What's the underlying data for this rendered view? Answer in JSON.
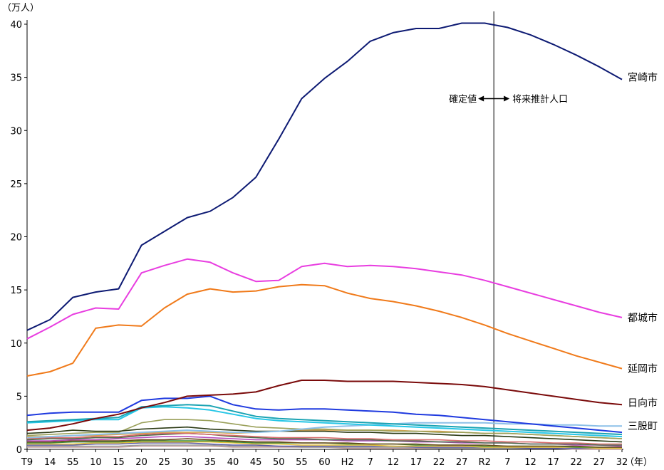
{
  "chart_data": {
    "type": "line",
    "title": "",
    "ylabel": "（万人）",
    "xlabel": "（年）",
    "ylim": [
      0,
      40
    ],
    "yticks": [
      0,
      5,
      10,
      15,
      20,
      25,
      30,
      35,
      40
    ],
    "categories": [
      "T9",
      "14",
      "S5",
      "10",
      "15",
      "20",
      "25",
      "30",
      "35",
      "40",
      "45",
      "50",
      "55",
      "60",
      "H2",
      "7",
      "12",
      "17",
      "22",
      "27",
      "R2",
      "7",
      "12",
      "17",
      "22",
      "27",
      "32"
    ],
    "divider_after_index": 20,
    "annotation_left": "確定値",
    "annotation_right": "将来推計人口",
    "series": [
      {
        "name": "宮崎市",
        "color": "#0d1a73",
        "width": 2,
        "label": true,
        "values": [
          11.2,
          12.2,
          14.3,
          14.8,
          15.1,
          19.2,
          20.5,
          21.8,
          22.4,
          23.7,
          25.6,
          29.2,
          33.0,
          34.9,
          36.5,
          38.4,
          39.2,
          39.6,
          39.6,
          40.1,
          40.1,
          39.7,
          39.0,
          38.1,
          37.1,
          36.0,
          34.8
        ]
      },
      {
        "name": "都城市",
        "color": "#e83de0",
        "width": 2,
        "label": true,
        "values": [
          10.4,
          11.5,
          12.7,
          13.3,
          13.2,
          16.6,
          17.3,
          17.9,
          17.6,
          16.6,
          15.8,
          15.9,
          17.2,
          17.5,
          17.2,
          17.3,
          17.2,
          17.0,
          16.7,
          16.4,
          15.9,
          15.3,
          14.7,
          14.1,
          13.5,
          12.9,
          12.4
        ]
      },
      {
        "name": "延岡市",
        "color": "#f07a1a",
        "width": 2,
        "label": true,
        "values": [
          6.9,
          7.3,
          8.1,
          11.4,
          11.7,
          11.6,
          13.3,
          14.6,
          15.1,
          14.8,
          14.9,
          15.3,
          15.5,
          15.4,
          14.7,
          14.2,
          13.9,
          13.5,
          13.0,
          12.4,
          11.7,
          10.9,
          10.2,
          9.5,
          8.8,
          8.2,
          7.6
        ]
      },
      {
        "name": "日向市",
        "color": "#7a0a0a",
        "width": 2,
        "label": true,
        "values": [
          1.8,
          2.0,
          2.4,
          2.9,
          3.3,
          3.9,
          4.4,
          5.0,
          5.1,
          5.2,
          5.4,
          6.0,
          6.5,
          6.5,
          6.4,
          6.4,
          6.4,
          6.3,
          6.2,
          6.1,
          5.9,
          5.6,
          5.3,
          5.0,
          4.7,
          4.4,
          4.2
        ]
      },
      {
        "name": "",
        "color": "#1f3adf",
        "width": 2,
        "label": false,
        "values": [
          3.2,
          3.4,
          3.5,
          3.5,
          3.5,
          4.6,
          4.8,
          4.8,
          5.0,
          4.2,
          3.8,
          3.7,
          3.8,
          3.8,
          3.7,
          3.6,
          3.5,
          3.3,
          3.2,
          3.0,
          2.8,
          2.6,
          2.4,
          2.2,
          2.0,
          1.8,
          1.6
        ]
      },
      {
        "name": "",
        "color": "#1aa3b3",
        "width": 2,
        "label": false,
        "values": [
          2.6,
          2.7,
          2.8,
          2.9,
          3.0,
          4.0,
          4.1,
          4.2,
          4.1,
          3.6,
          3.1,
          2.9,
          2.8,
          2.7,
          2.6,
          2.5,
          2.4,
          2.3,
          2.2,
          2.1,
          2.0,
          1.9,
          1.8,
          1.7,
          1.6,
          1.5,
          1.4
        ]
      },
      {
        "name": "",
        "color": "#26c6e6",
        "width": 2,
        "label": false,
        "values": [
          2.5,
          2.6,
          2.7,
          2.8,
          2.8,
          3.9,
          4.0,
          3.9,
          3.7,
          3.3,
          2.9,
          2.7,
          2.6,
          2.5,
          2.4,
          2.3,
          2.2,
          2.1,
          2.0,
          1.9,
          1.8,
          1.7,
          1.6,
          1.5,
          1.4,
          1.3,
          1.2
        ]
      },
      {
        "name": "三股町",
        "color": "#8cc0e8",
        "width": 2,
        "label": true,
        "values": [
          1.1,
          1.2,
          1.3,
          1.4,
          1.5,
          1.6,
          1.7,
          1.8,
          1.7,
          1.6,
          1.6,
          1.7,
          1.9,
          2.1,
          2.2,
          2.3,
          2.4,
          2.5,
          2.5,
          2.5,
          2.5,
          2.4,
          2.4,
          2.3,
          2.3,
          2.2,
          2.2
        ]
      },
      {
        "name": "",
        "color": "#2b3a14",
        "width": 1.6,
        "label": false,
        "values": [
          1.5,
          1.6,
          1.8,
          1.7,
          1.7,
          1.9,
          2.0,
          2.1,
          1.9,
          1.8,
          1.7,
          1.7,
          1.7,
          1.7,
          1.6,
          1.6,
          1.5,
          1.5,
          1.4,
          1.3,
          1.3,
          1.2,
          1.1,
          1.0,
          0.9,
          0.8,
          0.7
        ]
      },
      {
        "name": "",
        "color": "#9aa05a",
        "width": 1.6,
        "label": false,
        "values": [
          1.3,
          1.4,
          1.5,
          1.6,
          1.6,
          2.5,
          2.8,
          2.8,
          2.7,
          2.4,
          2.1,
          2.0,
          1.9,
          1.9,
          1.8,
          1.8,
          1.7,
          1.7,
          1.6,
          1.6,
          1.5,
          1.5,
          1.4,
          1.3,
          1.2,
          1.1,
          1.0
        ]
      },
      {
        "name": "",
        "color": "#d9a24b",
        "width": 1.6,
        "label": false,
        "values": [
          1.2,
          1.2,
          1.3,
          1.3,
          1.4,
          1.5,
          1.6,
          1.6,
          1.6,
          1.5,
          1.6,
          1.7,
          1.8,
          1.8,
          1.8,
          1.8,
          1.8,
          1.7,
          1.7,
          1.6,
          1.5,
          1.5,
          1.4,
          1.3,
          1.2,
          1.1,
          1.0
        ]
      },
      {
        "name": "",
        "color": "#d86d6d",
        "width": 1.6,
        "label": false,
        "values": [
          1.0,
          1.1,
          1.1,
          1.2,
          1.2,
          1.4,
          1.5,
          1.5,
          1.4,
          1.3,
          1.2,
          1.1,
          1.1,
          1.1,
          1.0,
          1.0,
          0.9,
          0.9,
          0.9,
          0.8,
          0.8,
          0.7,
          0.7,
          0.6,
          0.6,
          0.5,
          0.5
        ]
      },
      {
        "name": "",
        "color": "#4a6b4a",
        "width": 1.6,
        "label": false,
        "values": [
          0.9,
          1.0,
          1.0,
          1.1,
          1.1,
          1.3,
          1.4,
          1.5,
          1.4,
          1.2,
          1.1,
          1.0,
          1.0,
          0.9,
          0.9,
          0.9,
          0.8,
          0.8,
          0.7,
          0.7,
          0.6,
          0.6,
          0.5,
          0.5,
          0.5,
          0.4,
          0.4
        ]
      },
      {
        "name": "",
        "color": "#b74fbf",
        "width": 1.6,
        "label": false,
        "values": [
          0.8,
          0.8,
          0.9,
          0.9,
          1.0,
          1.1,
          1.2,
          1.2,
          1.1,
          1.0,
          0.9,
          0.9,
          0.9,
          0.9,
          0.8,
          0.8,
          0.8,
          0.7,
          0.7,
          0.6,
          0.6,
          0.6,
          0.5,
          0.5,
          0.4,
          0.4,
          0.3
        ]
      },
      {
        "name": "",
        "color": "#6e4a1c",
        "width": 1.6,
        "label": false,
        "values": [
          0.7,
          0.7,
          0.8,
          0.8,
          0.8,
          0.9,
          0.9,
          1.0,
          0.9,
          0.8,
          0.7,
          0.7,
          0.6,
          0.6,
          0.6,
          0.5,
          0.5,
          0.5,
          0.4,
          0.4,
          0.4,
          0.3,
          0.3,
          0.3,
          0.3,
          0.2,
          0.2
        ]
      },
      {
        "name": "",
        "color": "#3c8a3c",
        "width": 1.6,
        "label": false,
        "values": [
          0.6,
          0.6,
          0.7,
          0.7,
          0.7,
          0.8,
          0.8,
          0.8,
          0.8,
          0.7,
          0.6,
          0.6,
          0.6,
          0.6,
          0.5,
          0.5,
          0.5,
          0.4,
          0.4,
          0.4,
          0.3,
          0.3,
          0.3,
          0.3,
          0.2,
          0.2,
          0.2
        ]
      },
      {
        "name": "",
        "color": "#e8c33a",
        "width": 1.6,
        "label": false,
        "values": [
          0.5,
          0.5,
          0.5,
          0.6,
          0.6,
          0.7,
          0.7,
          0.7,
          0.7,
          0.6,
          0.5,
          0.5,
          0.4,
          0.4,
          0.4,
          0.4,
          0.3,
          0.3,
          0.3,
          0.3,
          0.2,
          0.2,
          0.2,
          0.2,
          0.2,
          0.1,
          0.1
        ]
      },
      {
        "name": "",
        "color": "#5a5aa8",
        "width": 1.6,
        "label": false,
        "values": [
          0.4,
          0.4,
          0.4,
          0.5,
          0.5,
          0.6,
          0.6,
          0.6,
          0.5,
          0.4,
          0.4,
          0.3,
          0.3,
          0.3,
          0.3,
          0.3,
          0.3,
          0.2,
          0.2,
          0.2,
          0.2,
          0.2,
          0.1,
          0.1,
          0.1,
          0.1,
          0.1
        ]
      },
      {
        "name": "",
        "color": "#999999",
        "width": 1.6,
        "label": false,
        "values": [
          0.3,
          0.3,
          0.3,
          0.3,
          0.3,
          0.4,
          0.4,
          0.4,
          0.4,
          0.3,
          0.3,
          0.3,
          0.2,
          0.2,
          0.2,
          0.2,
          0.2,
          0.2,
          0.1,
          0.1,
          0.1,
          0.1,
          0.1,
          0.1,
          0.1,
          0.1,
          0.1
        ]
      },
      {
        "name": "",
        "color": "#c8a0a0",
        "width": 1.6,
        "label": false,
        "values": [
          0.2,
          0.2,
          0.2,
          0.2,
          0.2,
          0.3,
          0.3,
          0.3,
          0.3,
          0.2,
          0.2,
          0.2,
          0.2,
          0.2,
          0.1,
          0.1,
          0.1,
          0.1,
          0.1,
          0.1,
          0.1,
          0.1,
          0.1,
          0.1,
          0.0,
          0.0,
          0.0
        ]
      }
    ]
  }
}
